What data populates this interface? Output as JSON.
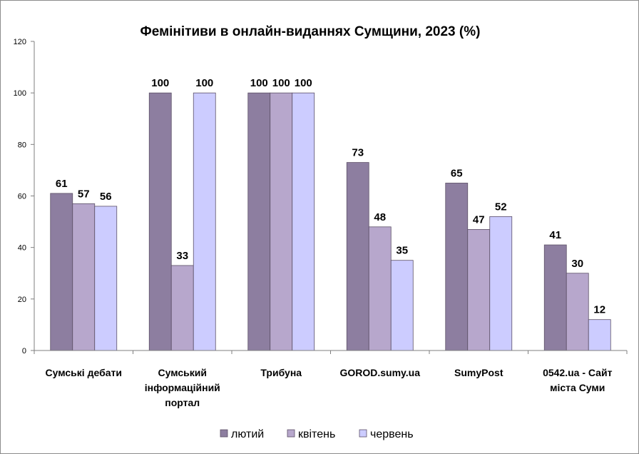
{
  "chart_data": {
    "type": "bar",
    "title": "Фемінітиви в онлайн-виданнях Сумщини, 2023 (%)",
    "xlabel": "",
    "ylabel": "",
    "ylim": [
      0,
      120
    ],
    "yticks": [
      0,
      20,
      40,
      60,
      80,
      100,
      120
    ],
    "grid": false,
    "legend_position": "bottom",
    "categories": [
      [
        "Сумські дебати"
      ],
      [
        "Сумський",
        "інформаційний",
        "портал"
      ],
      [
        "Трибуна"
      ],
      [
        "GOROD.sumy.ua"
      ],
      [
        "SumyPost"
      ],
      [
        "0542.ua - Сайт",
        "міста Суми"
      ]
    ],
    "series": [
      {
        "name": "лютий",
        "color": "#8d7ea0",
        "values": [
          61,
          100,
          100,
          73,
          65,
          41
        ]
      },
      {
        "name": "квітень",
        "color": "#b7a7cc",
        "values": [
          57,
          33,
          100,
          48,
          47,
          30
        ]
      },
      {
        "name": "червень",
        "color": "#ccccff",
        "values": [
          56,
          100,
          100,
          35,
          52,
          12
        ]
      }
    ]
  }
}
